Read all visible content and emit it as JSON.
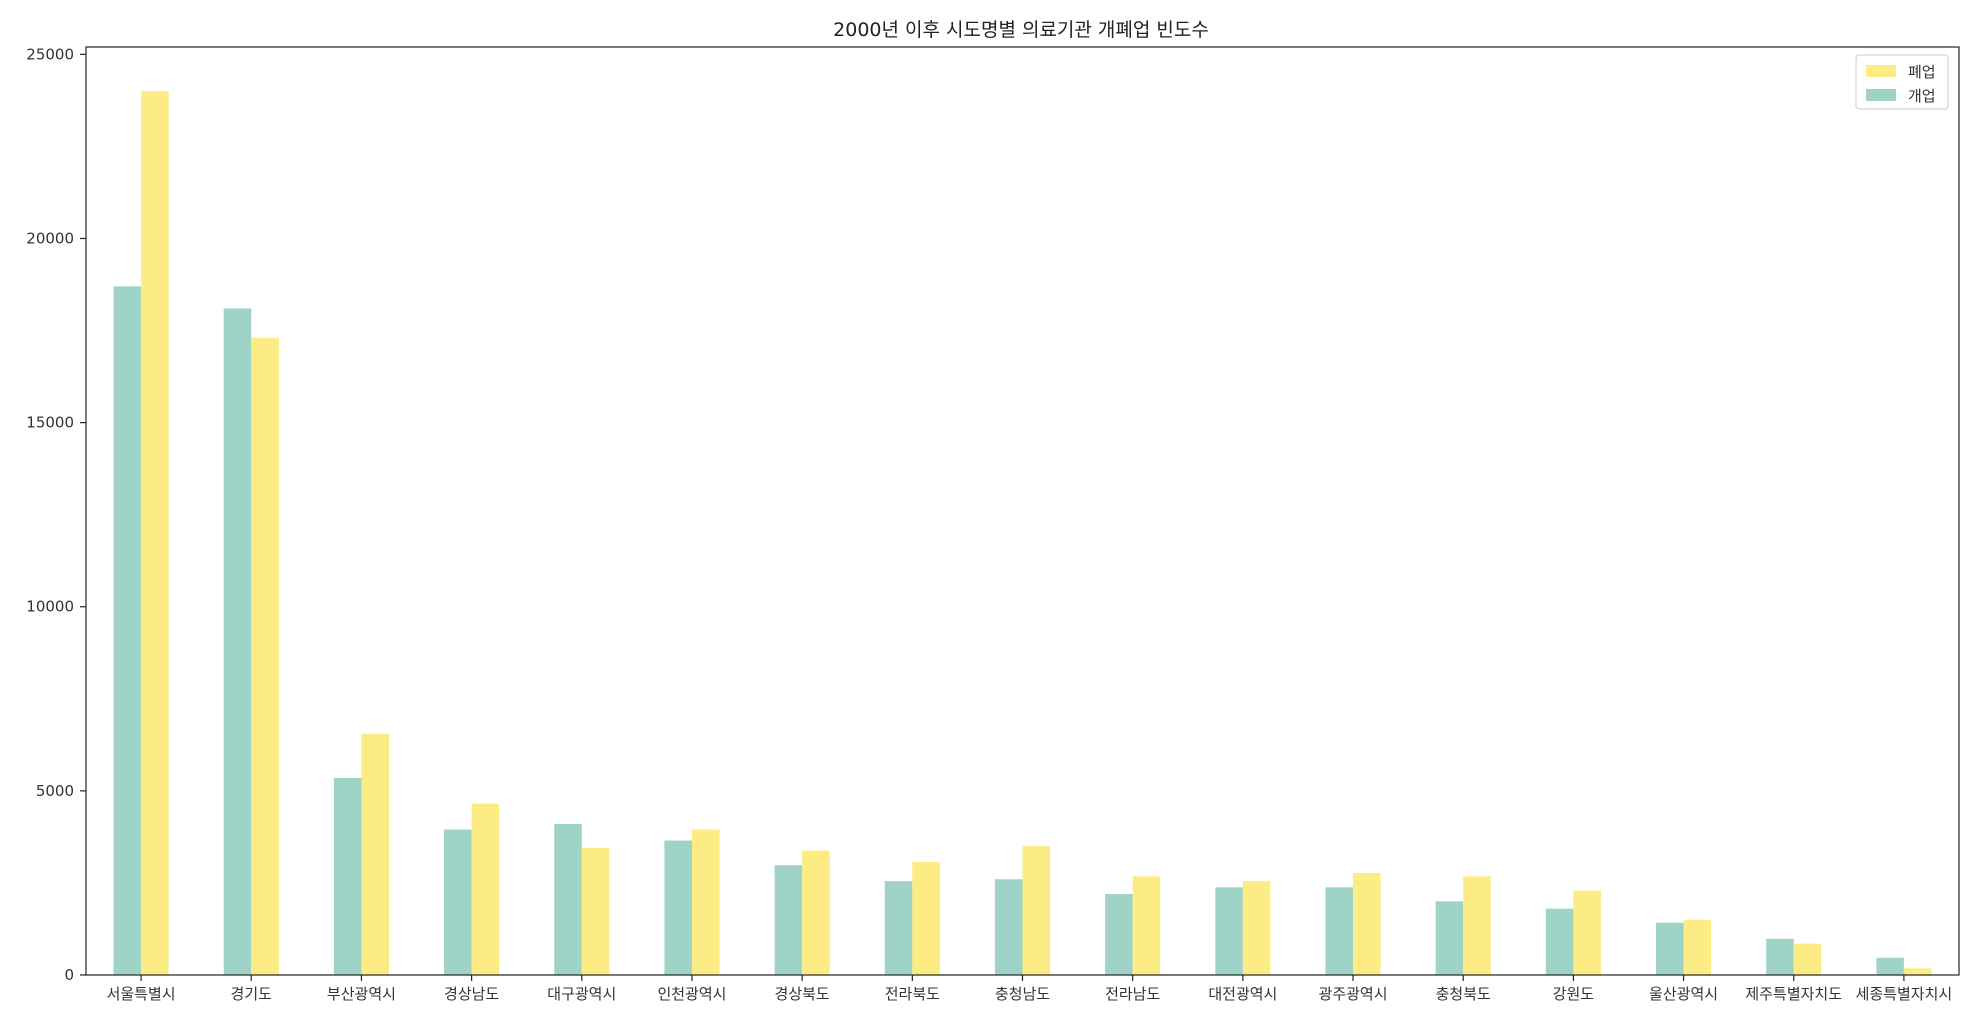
{
  "chart_data": {
    "type": "bar",
    "title": "2000년 이후 시도명별 의료기관 개폐업 빈도수",
    "xlabel": "",
    "ylabel": "",
    "categories": [
      "서울특별시",
      "경기도",
      "부산광역시",
      "경상남도",
      "대구광역시",
      "인천광역시",
      "경상북도",
      "전라북도",
      "충청남도",
      "전라남도",
      "대전광역시",
      "광주광역시",
      "충청북도",
      "강원도",
      "울산광역시",
      "제주특별자치도",
      "세종특별자치시"
    ],
    "series": [
      {
        "name": "개업",
        "color": "#9fd3c7",
        "values": [
          18700,
          18100,
          5350,
          3950,
          4100,
          3650,
          2980,
          2550,
          2600,
          2200,
          2380,
          2380,
          2000,
          1800,
          1420,
          980,
          470
        ]
      },
      {
        "name": "폐업",
        "color": "#fcec83",
        "values": [
          24000,
          17300,
          6550,
          4650,
          3450,
          3950,
          3380,
          3070,
          3500,
          2680,
          2550,
          2770,
          2680,
          2290,
          1500,
          850,
          180
        ]
      }
    ],
    "ylim": [
      0,
      25200
    ],
    "yticks": [
      0,
      5000,
      10000,
      15000,
      20000,
      25000
    ],
    "grid": false,
    "legend_position": "top-right",
    "legend_order": [
      "폐업",
      "개업"
    ]
  }
}
